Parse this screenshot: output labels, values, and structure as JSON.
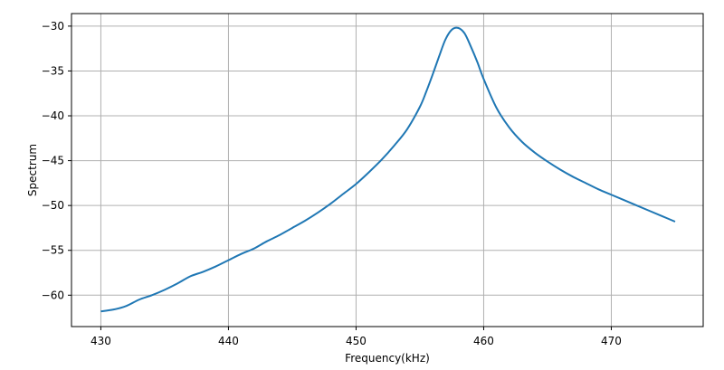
{
  "chart_data": {
    "type": "line",
    "title": "",
    "xlabel": "Frequency(kHz)",
    "ylabel": "Spectrum",
    "xlim": [
      427.7,
      477.2
    ],
    "ylim": [
      -63.5,
      -28.6
    ],
    "grid": true,
    "x_ticks": [
      430,
      440,
      450,
      460,
      470
    ],
    "x_tick_labels": [
      "430",
      "440",
      "450",
      "460",
      "470"
    ],
    "y_ticks": [
      -30,
      -35,
      -40,
      -45,
      -50,
      -55,
      -60
    ],
    "y_tick_labels": [
      "−30",
      "−35",
      "−40",
      "−45",
      "−50",
      "−55",
      "−60"
    ],
    "series": [
      {
        "color": "#1f77b4",
        "x": [
          430,
          431,
          432,
          433,
          434,
          435,
          436,
          437,
          438,
          439,
          440,
          441,
          442,
          443,
          444,
          445,
          446,
          447,
          448,
          449,
          450,
          451,
          452,
          453,
          454,
          455,
          455.5,
          456,
          456.5,
          457,
          457.5,
          458,
          458.5,
          459,
          459.5,
          460,
          461,
          462,
          463,
          464,
          465,
          466,
          467,
          468,
          469,
          470,
          471,
          472,
          473,
          474,
          475
        ],
        "y": [
          -61.8,
          -61.6,
          -61.2,
          -60.5,
          -60.0,
          -59.4,
          -58.7,
          -57.9,
          -57.4,
          -56.8,
          -56.1,
          -55.4,
          -54.8,
          -54.0,
          -53.3,
          -52.5,
          -51.7,
          -50.8,
          -49.8,
          -48.7,
          -47.6,
          -46.3,
          -44.9,
          -43.3,
          -41.5,
          -39.0,
          -37.3,
          -35.4,
          -33.4,
          -31.5,
          -30.4,
          -30.2,
          -30.8,
          -32.3,
          -34.0,
          -35.9,
          -39.1,
          -41.3,
          -42.9,
          -44.1,
          -45.1,
          -46.0,
          -46.8,
          -47.5,
          -48.2,
          -48.8,
          -49.4,
          -50.0,
          -50.6,
          -51.2,
          -51.8
        ]
      }
    ]
  }
}
